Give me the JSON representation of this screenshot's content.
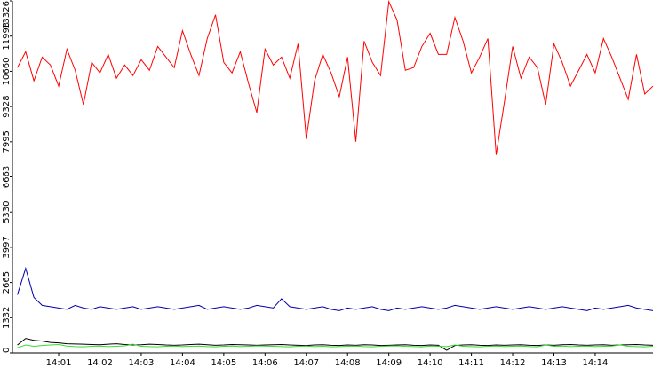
{
  "chart_data": {
    "type": "line",
    "x": [
      0,
      0.2,
      0.4,
      0.6,
      0.8,
      1,
      1.2,
      1.4,
      1.6,
      1.8,
      2,
      2.2,
      2.4,
      2.6,
      2.8,
      3,
      3.2,
      3.4,
      3.6,
      3.8,
      4,
      4.2,
      4.4,
      4.6,
      4.8,
      5,
      5.2,
      5.4,
      5.6,
      5.8,
      6,
      6.2,
      6.4,
      6.6,
      6.8,
      7,
      7.2,
      7.4,
      7.6,
      7.8,
      8,
      8.2,
      8.4,
      8.6,
      8.8,
      9,
      9.2,
      9.4,
      9.6,
      9.8,
      10,
      10.2,
      10.4,
      10.6,
      10.8,
      11,
      11.2,
      11.4,
      11.6,
      11.8,
      12,
      12.2,
      12.4,
      12.6,
      12.8,
      13,
      13.2,
      13.4,
      13.6,
      13.8,
      14,
      14.2,
      14.4,
      14.6,
      14.8,
      15,
      15.2,
      15.4
    ],
    "series": [
      {
        "color": "#ff0000",
        "values": [
          10800,
          11400,
          10300,
          11200,
          10900,
          10100,
          11500,
          10700,
          9400,
          11000,
          10600,
          11300,
          10400,
          10900,
          10500,
          11100,
          10700,
          11600,
          11200,
          10800,
          12200,
          11300,
          10500,
          11900,
          12800,
          11000,
          10600,
          11400,
          10200,
          9100,
          11500,
          10900,
          11200,
          10400,
          11700,
          8100,
          10300,
          11300,
          10600,
          9700,
          11200,
          8000,
          11800,
          11000,
          10500,
          13300,
          12600,
          10700,
          10800,
          11600,
          12100,
          11300,
          11300,
          12700,
          11800,
          10600,
          11200,
          11900,
          7500,
          9500,
          11600,
          10400,
          11200,
          10800,
          9400,
          11700,
          11000,
          10100,
          10700,
          11300,
          10600,
          11900,
          11200,
          10400,
          9600,
          11300,
          9800,
          10100
        ]
      },
      {
        "color": "#0000aa",
        "values": [
          2200,
          3200,
          2100,
          1800,
          1750,
          1700,
          1650,
          1800,
          1700,
          1650,
          1750,
          1700,
          1650,
          1700,
          1750,
          1650,
          1700,
          1750,
          1700,
          1650,
          1700,
          1750,
          1800,
          1650,
          1700,
          1750,
          1700,
          1650,
          1700,
          1800,
          1750,
          1700,
          2050,
          1750,
          1700,
          1650,
          1700,
          1750,
          1650,
          1600,
          1700,
          1650,
          1700,
          1750,
          1650,
          1600,
          1700,
          1650,
          1700,
          1750,
          1700,
          1650,
          1700,
          1800,
          1750,
          1700,
          1650,
          1700,
          1750,
          1700,
          1650,
          1700,
          1750,
          1700,
          1650,
          1700,
          1750,
          1700,
          1650,
          1600,
          1700,
          1650,
          1700,
          1750,
          1800,
          1700,
          1650,
          1600
        ]
      },
      {
        "color": "#000000",
        "values": [
          300,
          550,
          480,
          450,
          400,
          380,
          350,
          340,
          330,
          320,
          310,
          330,
          350,
          320,
          300,
          310,
          330,
          320,
          300,
          290,
          300,
          320,
          330,
          310,
          290,
          300,
          320,
          310,
          300,
          290,
          300,
          310,
          320,
          300,
          290,
          280,
          300,
          310,
          290,
          280,
          300,
          290,
          310,
          300,
          280,
          290,
          300,
          310,
          290,
          280,
          300,
          290,
          100,
          280,
          300,
          310,
          290,
          280,
          300,
          290,
          300,
          310,
          290,
          280,
          300,
          290,
          310,
          320,
          300,
          290,
          300,
          310,
          290,
          300,
          310,
          320,
          300,
          290
        ]
      },
      {
        "color": "#33dd33",
        "values": [
          200,
          300,
          250,
          280,
          300,
          320,
          260,
          240,
          230,
          250,
          260,
          240,
          250,
          270,
          330,
          250,
          240,
          230,
          250,
          260,
          240,
          250,
          260,
          240,
          230,
          250,
          260,
          240,
          250,
          270,
          260,
          250,
          240,
          230,
          250,
          260,
          240,
          250,
          230,
          240,
          250,
          260,
          240,
          230,
          250,
          260,
          270,
          250,
          240,
          230,
          260,
          250,
          240,
          300,
          250,
          240,
          230,
          250,
          260,
          240,
          250,
          260,
          240,
          230,
          300,
          250,
          260,
          240,
          250,
          260,
          240,
          250,
          260,
          300,
          250,
          240,
          230,
          250
        ]
      }
    ],
    "xlim": [
      -0.12,
      15.4
    ],
    "xticks": [
      {
        "value": 1,
        "label": "14:01"
      },
      {
        "value": 2,
        "label": "14:02"
      },
      {
        "value": 3,
        "label": "14:03"
      },
      {
        "value": 4,
        "label": "14:04"
      },
      {
        "value": 5,
        "label": "14:05"
      },
      {
        "value": 6,
        "label": "14:06"
      },
      {
        "value": 7,
        "label": "14:07"
      },
      {
        "value": 8,
        "label": "14:08"
      },
      {
        "value": 9,
        "label": "14:09"
      },
      {
        "value": 10,
        "label": "14:10"
      },
      {
        "value": 11,
        "label": "14:11"
      },
      {
        "value": 12,
        "label": "14:12"
      },
      {
        "value": 13,
        "label": "14:13"
      },
      {
        "value": 14,
        "label": "14:14"
      }
    ],
    "ylim": [
      0,
      13326
    ],
    "yticks": [
      0,
      1332,
      2665,
      3997,
      5330,
      6663,
      7995,
      9328,
      10660,
      11993,
      13326
    ]
  }
}
